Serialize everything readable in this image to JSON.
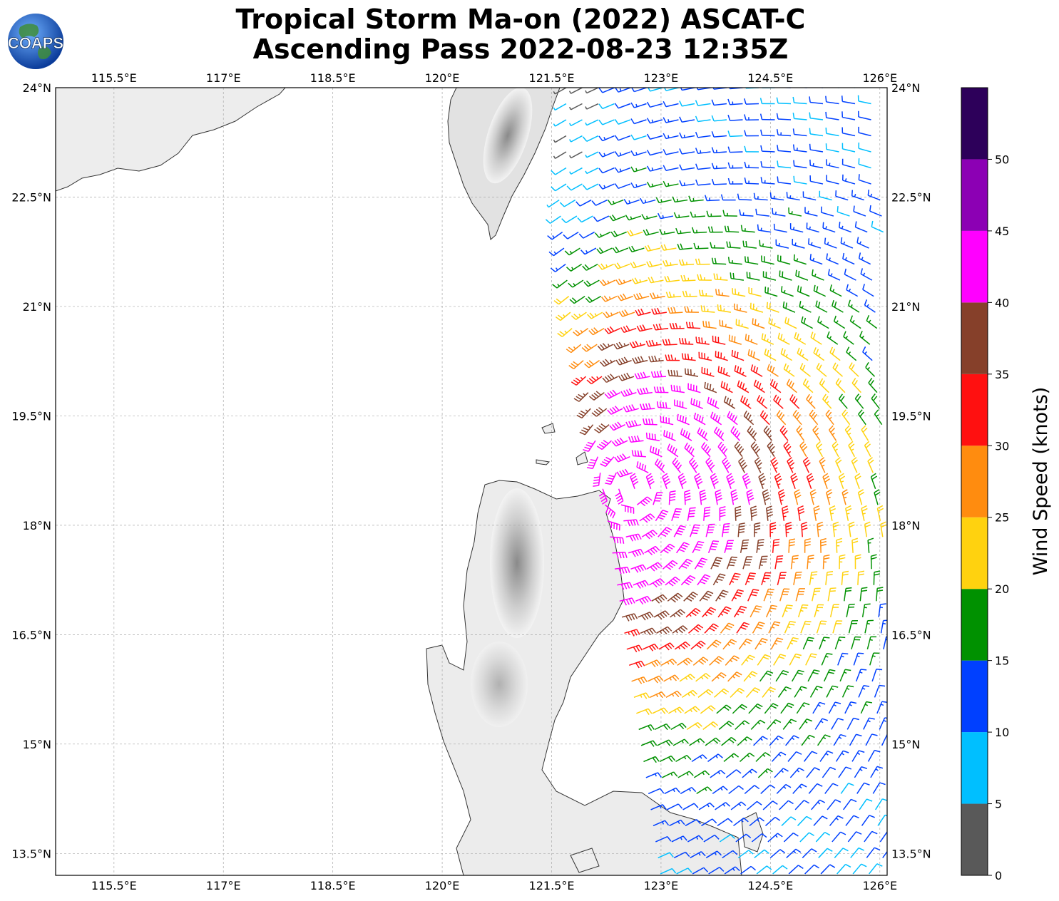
{
  "title": {
    "line1": "Tropical Storm Ma-on (2022) ASCAT-C",
    "line2": "Ascending Pass 2022-08-23 12:35Z"
  },
  "logo": {
    "text": "COAPS",
    "icon": "globe-logo-icon"
  },
  "map": {
    "lon_range": [
      114.7,
      126.1
    ],
    "lat_range": [
      13.2,
      24.0
    ],
    "lon_ticks": [
      115.5,
      117,
      118.5,
      120,
      121.5,
      123,
      124.5,
      126
    ],
    "lon_tick_labels": [
      "115.5°E",
      "117°E",
      "118.5°E",
      "120°E",
      "121.5°E",
      "123°E",
      "124.5°E",
      "126°E"
    ],
    "lat_ticks": [
      24,
      22.5,
      21,
      19.5,
      18,
      16.5,
      15,
      13.5
    ],
    "lat_tick_labels": [
      "24°N",
      "22.5°N",
      "21°N",
      "19.5°N",
      "18°N",
      "16.5°N",
      "15°N",
      "13.5°N"
    ],
    "gridlines": true,
    "land_names": [
      "Taiwan",
      "Luzon",
      "South China coast"
    ]
  },
  "colorbar": {
    "label": "Wind Speed (knots)",
    "ticks": [
      "0",
      "5",
      "10",
      "15",
      "20",
      "25",
      "30",
      "35",
      "40",
      "45",
      "50"
    ],
    "colors": [
      "#595959",
      "#00bfff",
      "#0040ff",
      "#009100",
      "#ffd20f",
      "#ff8c0f",
      "#ff1010",
      "#86402a",
      "#ff00ff",
      "#8c00b4",
      "#2d005a"
    ]
  },
  "chart_data": {
    "type": "wind-barbs",
    "units": "knots",
    "swath": "ascending pass, eastern part of map from ~121.5°E to 126°E",
    "center_estimate": {
      "lat": 18.5,
      "lon": 122.6
    },
    "speed_bins": [
      0,
      5,
      10,
      15,
      20,
      25,
      30,
      35,
      40,
      45,
      50
    ]
  }
}
